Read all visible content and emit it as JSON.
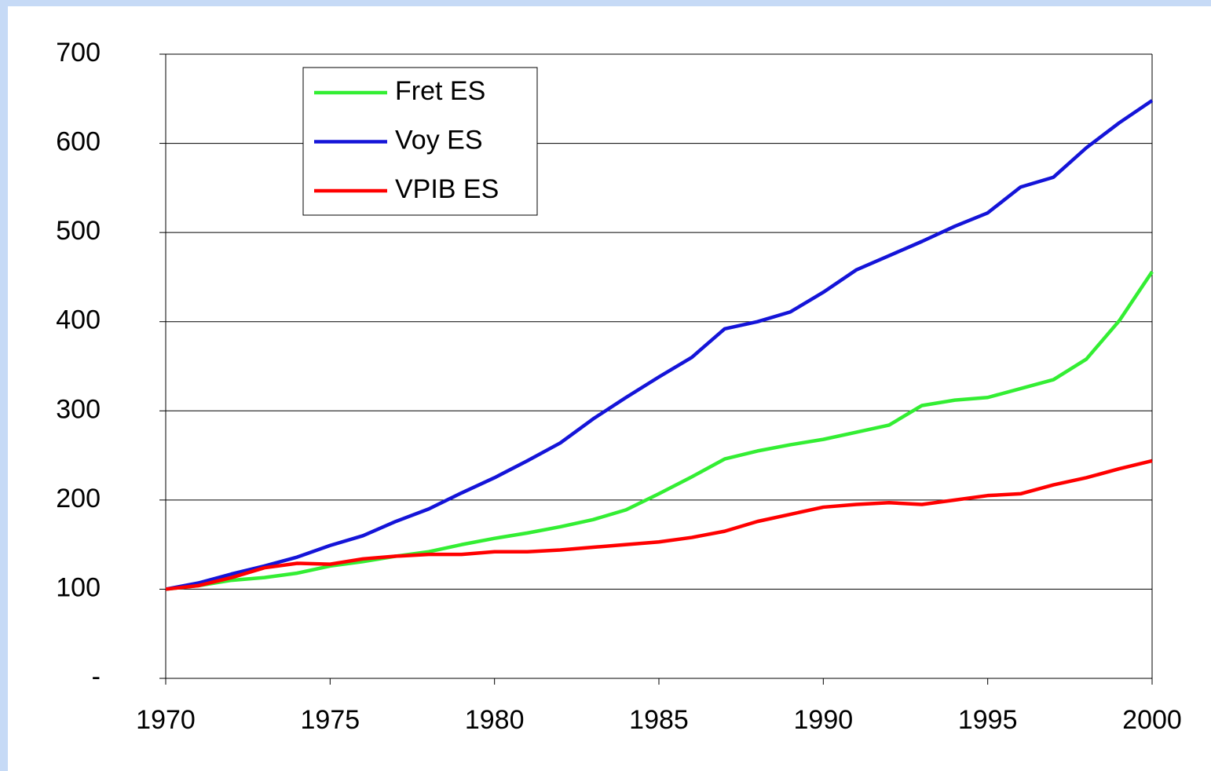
{
  "chart_data": {
    "type": "line",
    "x": [
      1970,
      1971,
      1972,
      1973,
      1974,
      1975,
      1976,
      1977,
      1978,
      1979,
      1980,
      1981,
      1982,
      1983,
      1984,
      1985,
      1986,
      1987,
      1988,
      1989,
      1990,
      1991,
      1992,
      1993,
      1994,
      1995,
      1996,
      1997,
      1998,
      1999,
      2000
    ],
    "series": [
      {
        "name": "Fret ES",
        "color": "#33ee33",
        "values": [
          100,
          104,
          110,
          113,
          118,
          126,
          131,
          137,
          142,
          150,
          157,
          163,
          170,
          178,
          189,
          207,
          226,
          246,
          255,
          262,
          268,
          276,
          284,
          306,
          312,
          315,
          325,
          335,
          358,
          401,
          456
        ]
      },
      {
        "name": "Voy ES",
        "color": "#1414d8",
        "values": [
          100,
          107,
          117,
          126,
          136,
          149,
          160,
          176,
          190,
          208,
          225,
          244,
          264,
          291,
          315,
          338,
          360,
          392,
          400,
          411,
          433,
          458,
          474,
          490,
          507,
          522,
          551,
          562,
          595,
          623,
          648
        ]
      },
      {
        "name": "VPIB ES",
        "color": "#ff0000",
        "values": [
          100,
          104,
          113,
          124,
          129,
          128,
          134,
          137,
          139,
          139,
          142,
          142,
          144,
          147,
          150,
          153,
          158,
          165,
          176,
          184,
          192,
          195,
          197,
          195,
          200,
          205,
          207,
          217,
          225,
          235,
          244
        ]
      }
    ],
    "xlim": [
      1970,
      2000
    ],
    "xticks": [
      1970,
      1975,
      1980,
      1985,
      1990,
      1995,
      2000
    ],
    "ylim": [
      0,
      700
    ],
    "yticks": [
      {
        "value": 0,
        "label": "-"
      },
      100,
      200,
      300,
      400,
      500,
      600,
      700
    ],
    "grid": true,
    "legend": "top-left"
  }
}
